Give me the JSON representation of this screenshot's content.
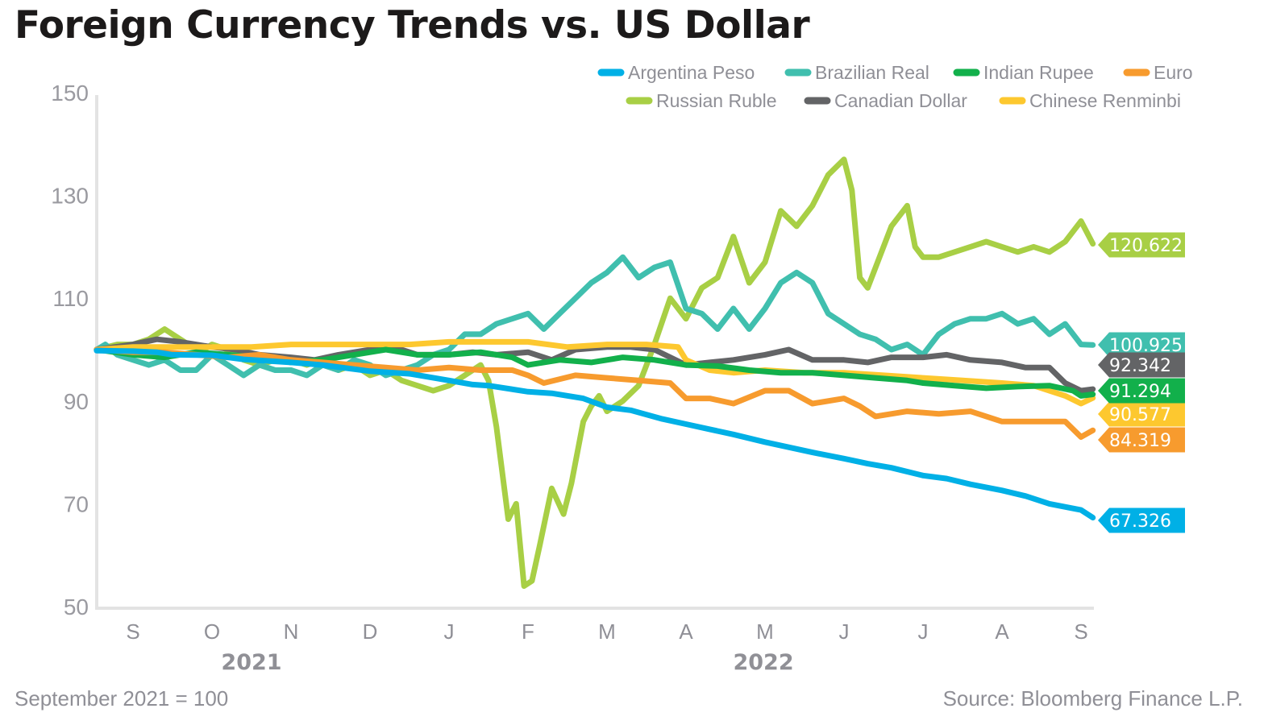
{
  "title": "Foreign Currency Trends vs. US Dollar",
  "note": "September 2021 = 100",
  "source": "Source: Bloomberg Finance L.P.",
  "chart_data": {
    "type": "line",
    "title": "Foreign Currency Trends vs. US Dollar",
    "xlabel": "",
    "ylabel": "",
    "ylim": [
      50,
      150
    ],
    "yticks": [
      50,
      70,
      90,
      110,
      130,
      150
    ],
    "xlim": [
      -0.46,
      12.15
    ],
    "x_unit": "months since September 2021",
    "xtick_labels": [
      "S",
      "O",
      "N",
      "D",
      "J",
      "F",
      "M",
      "A",
      "M",
      "J",
      "J",
      "A",
      "S"
    ],
    "xtick_values": [
      0,
      1,
      2,
      3,
      4,
      5,
      6,
      7,
      8,
      9,
      10,
      11,
      12
    ],
    "year_labels": [
      {
        "label": "2021",
        "x": 1.5
      },
      {
        "label": "2022",
        "x": 7.98
      }
    ],
    "grid": false,
    "legend_position": "top-right",
    "series": [
      {
        "name": "Argentina Peso",
        "color": "#00b0e6",
        "end_label": "67.326",
        "end_value": 67.326,
        "x": [
          -0.46,
          0.0,
          0.3,
          0.5,
          1.0,
          1.4,
          2.0,
          2.4,
          3.0,
          3.5,
          4.0,
          4.3,
          4.5,
          5.0,
          5.3,
          5.7,
          6.0,
          6.3,
          6.7,
          7.0,
          7.3,
          7.6,
          8.0,
          8.3,
          8.6,
          9.0,
          9.3,
          9.6,
          10.0,
          10.3,
          10.6,
          11.0,
          11.3,
          11.6,
          12.0,
          12.15
        ],
        "y": [
          99.8,
          99.7,
          99.5,
          99.0,
          98.9,
          98.1,
          97.5,
          97.0,
          95.8,
          95.3,
          94.0,
          93.2,
          93.0,
          91.8,
          91.5,
          90.5,
          88.8,
          88.2,
          86.5,
          85.5,
          84.5,
          83.5,
          82.0,
          81.0,
          80.0,
          78.8,
          77.8,
          77.0,
          75.5,
          74.9,
          73.8,
          72.6,
          71.5,
          70.0,
          68.8,
          67.3
        ]
      },
      {
        "name": "Brazilian Real",
        "color": "#40bfae",
        "end_label": "100.925",
        "end_value": 100.925,
        "x": [
          -0.46,
          -0.35,
          -0.2,
          0.0,
          0.2,
          0.4,
          0.6,
          0.8,
          1.0,
          1.2,
          1.4,
          1.6,
          1.8,
          2.0,
          2.2,
          2.4,
          2.6,
          2.8,
          3.0,
          3.2,
          3.4,
          3.6,
          3.8,
          4.0,
          4.2,
          4.4,
          4.6,
          4.8,
          5.0,
          5.2,
          5.4,
          5.6,
          5.8,
          6.0,
          6.2,
          6.4,
          6.6,
          6.8,
          7.0,
          7.2,
          7.4,
          7.6,
          7.8,
          8.0,
          8.2,
          8.4,
          8.6,
          8.8,
          9.0,
          9.2,
          9.4,
          9.6,
          9.8,
          10.0,
          10.2,
          10.4,
          10.6,
          10.8,
          11.0,
          11.2,
          11.4,
          11.6,
          11.8,
          12.0,
          12.15
        ],
        "y": [
          100,
          101,
          99,
          98,
          97,
          98,
          96,
          96,
          99,
          97,
          95,
          97,
          96,
          96,
          95,
          97,
          96,
          98,
          97,
          95,
          96,
          97,
          99,
          100,
          103,
          103,
          105,
          106,
          107,
          104,
          107,
          110,
          113,
          115,
          118,
          114,
          116,
          117,
          108,
          107,
          104,
          108,
          104,
          108,
          113,
          115,
          113,
          107,
          105,
          103,
          102,
          100,
          101,
          99,
          103,
          105,
          106,
          106,
          107,
          105,
          106,
          103,
          105,
          101,
          100.9
        ]
      },
      {
        "name": "Indian Rupee",
        "color": "#12b04b",
        "end_label": "91.294",
        "end_value": 91.294,
        "x": [
          -0.46,
          0.0,
          0.4,
          0.8,
          1.2,
          1.6,
          2.0,
          2.4,
          2.8,
          3.2,
          3.6,
          4.0,
          4.4,
          4.8,
          5.0,
          5.4,
          5.8,
          6.2,
          6.6,
          7.0,
          7.4,
          7.8,
          8.2,
          8.6,
          9.0,
          9.4,
          9.8,
          10.0,
          10.4,
          10.8,
          11.2,
          11.6,
          11.9,
          12.0,
          12.15
        ],
        "y": [
          100,
          99,
          98.5,
          99.5,
          99,
          98.5,
          97.5,
          98,
          99,
          100,
          99,
          99,
          99.5,
          98.5,
          97,
          98,
          97.5,
          98.5,
          98,
          97,
          96.8,
          96,
          95.5,
          95.5,
          95,
          94.5,
          94,
          93.5,
          93,
          92.5,
          92.8,
          93,
          92,
          91,
          91.3
        ]
      },
      {
        "name": "Euro",
        "color": "#f79b2e",
        "end_label": "84.319",
        "end_value": 84.319,
        "x": [
          -0.46,
          0.0,
          0.4,
          0.8,
          1.2,
          1.6,
          2.0,
          2.4,
          2.8,
          3.2,
          3.6,
          4.0,
          4.4,
          4.8,
          5.0,
          5.2,
          5.6,
          6.0,
          6.4,
          6.8,
          7.0,
          7.3,
          7.6,
          8.0,
          8.3,
          8.6,
          9.0,
          9.2,
          9.4,
          9.8,
          10.2,
          10.6,
          11.0,
          11.4,
          11.8,
          12.0,
          12.15
        ],
        "y": [
          100,
          99.5,
          99.5,
          99,
          98.5,
          99,
          98,
          97.5,
          97,
          96.5,
          96,
          96.5,
          96,
          96,
          95,
          93.5,
          95,
          94.5,
          94,
          93.5,
          90.5,
          90.5,
          89.5,
          92,
          92,
          89.5,
          90.5,
          89,
          87,
          88,
          87.5,
          88,
          86,
          86,
          86,
          83,
          84.3
        ]
      },
      {
        "name": "Russian Ruble",
        "color": "#a8cf45",
        "end_label": "120.622",
        "end_value": 120.622,
        "x": [
          -0.46,
          -0.2,
          0.0,
          0.2,
          0.4,
          0.5,
          0.7,
          0.9,
          1.0,
          1.2,
          1.4,
          1.6,
          1.8,
          2.0,
          2.2,
          2.4,
          2.6,
          2.8,
          3.0,
          3.2,
          3.4,
          3.6,
          3.8,
          4.0,
          4.2,
          4.4,
          4.5,
          4.6,
          4.75,
          4.85,
          4.95,
          5.05,
          5.15,
          5.3,
          5.45,
          5.55,
          5.7,
          5.8,
          5.9,
          6.0,
          6.2,
          6.4,
          6.6,
          6.8,
          7.0,
          7.2,
          7.4,
          7.6,
          7.8,
          8.0,
          8.2,
          8.4,
          8.6,
          8.8,
          9.0,
          9.1,
          9.2,
          9.3,
          9.4,
          9.6,
          9.8,
          9.9,
          10.0,
          10.2,
          10.4,
          10.6,
          10.8,
          11.0,
          11.2,
          11.4,
          11.6,
          11.8,
          12.0,
          12.15
        ],
        "y": [
          100,
          101,
          101,
          102,
          104,
          103,
          101,
          100,
          101,
          100,
          98,
          97,
          98,
          98,
          97,
          98,
          96,
          97,
          95,
          96,
          94,
          93,
          92,
          93,
          95,
          97,
          94,
          85,
          67,
          70,
          54,
          55,
          62,
          73,
          68,
          74,
          86,
          89,
          91,
          88,
          90,
          93,
          101,
          110,
          106,
          112,
          114,
          122,
          113,
          117,
          127,
          124,
          128,
          134,
          137,
          131,
          114,
          112,
          116,
          124,
          128,
          120,
          118,
          118,
          119,
          120,
          121,
          120,
          119,
          120,
          119,
          121,
          125,
          120.6
        ]
      },
      {
        "name": "Canadian Dollar",
        "color": "#636466",
        "end_label": "92.342",
        "end_value": 92.342,
        "x": [
          -0.46,
          0.0,
          0.3,
          0.6,
          1.0,
          1.3,
          1.6,
          2.0,
          2.3,
          2.6,
          3.0,
          3.3,
          3.6,
          4.0,
          4.3,
          4.6,
          5.0,
          5.3,
          5.6,
          6.0,
          6.3,
          6.6,
          7.0,
          7.3,
          7.6,
          8.0,
          8.3,
          8.6,
          9.0,
          9.3,
          9.6,
          10.0,
          10.3,
          10.6,
          11.0,
          11.3,
          11.6,
          11.8,
          12.0,
          12.15
        ],
        "y": [
          100,
          101,
          102,
          101.5,
          100.5,
          100,
          99,
          98.5,
          98,
          99,
          100,
          100.5,
          99,
          99,
          99.5,
          99,
          99.5,
          98,
          100,
          100.5,
          100.5,
          100,
          97,
          97.5,
          98,
          99,
          100,
          98,
          98,
          97.5,
          98.5,
          98.5,
          99,
          98,
          97.5,
          96.5,
          96.5,
          93.5,
          92,
          92.3
        ]
      },
      {
        "name": "Chinese Renminbi",
        "color": "#fdc82f",
        "end_label": "90.577",
        "end_value": 90.577,
        "x": [
          -0.46,
          0.0,
          0.5,
          1.0,
          1.5,
          2.0,
          2.5,
          3.0,
          3.5,
          4.0,
          4.5,
          5.0,
          5.5,
          6.0,
          6.5,
          6.9,
          7.0,
          7.3,
          7.6,
          8.0,
          8.5,
          9.0,
          9.5,
          10.0,
          10.5,
          11.0,
          11.4,
          11.8,
          12.0,
          12.15
        ],
        "y": [
          100,
          100.5,
          100.5,
          100.5,
          100.5,
          101,
          101,
          101,
          101,
          101.5,
          101.5,
          101.5,
          100.5,
          101,
          101,
          100.5,
          98,
          96,
          95.5,
          96,
          95.5,
          95.5,
          95,
          94.5,
          94,
          93.5,
          93,
          91,
          89.5,
          90.6
        ]
      }
    ]
  }
}
